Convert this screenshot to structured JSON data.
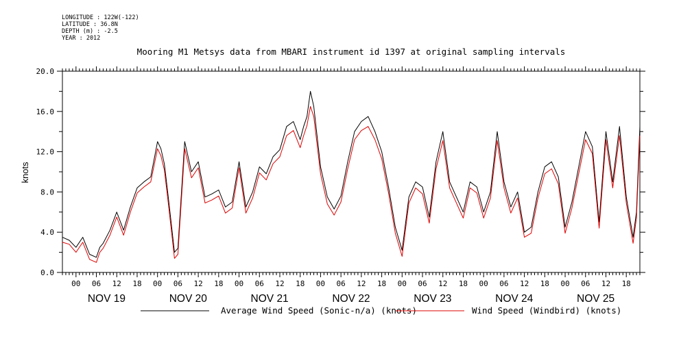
{
  "meta": {
    "longitude": "LONGITUDE : 122W(-122)",
    "latitude": "LATITUDE : 36.8N",
    "depth": "DEPTH (m) : -2.5",
    "year": "YEAR : 2012"
  },
  "chart_data": {
    "type": "line",
    "title": "Mooring M1 Metsys data from MBARI instrument id 1397 at original sampling intervals",
    "ylabel": "knots",
    "xlabel": "",
    "ylim": [
      0,
      20
    ],
    "yticks": [
      "0.0",
      "4.0",
      "8.0",
      "12.0",
      "16.0",
      "20.0"
    ],
    "x_unit": "hours since Nov 18 20:00",
    "xlim": [
      0,
      170
    ],
    "hour_ticks": [
      "00",
      "06",
      "12",
      "18"
    ],
    "day_labels": [
      "NOV 19",
      "NOV 20",
      "NOV 21",
      "NOV 22",
      "NOV 23",
      "NOV 24",
      "NOV 25"
    ],
    "colors": {
      "sonic": "#000000",
      "windbird": "#dd0000"
    },
    "series": [
      {
        "name": "Average Wind Speed (Sonic-n/a) (knots)",
        "x": [
          0,
          2,
          4,
          6,
          8,
          10,
          11,
          12,
          14,
          16,
          18,
          20,
          22,
          24,
          26,
          28,
          29,
          30,
          31,
          32,
          33,
          34,
          36,
          38,
          40,
          42,
          44,
          46,
          48,
          50,
          52,
          54,
          56,
          58,
          60,
          62,
          64,
          66,
          68,
          70,
          71,
          72,
          73,
          74,
          76,
          78,
          80,
          82,
          84,
          86,
          88,
          90,
          92,
          94,
          96,
          98,
          100,
          102,
          104,
          106,
          108,
          110,
          112,
          114,
          116,
          118,
          120,
          122,
          124,
          126,
          128,
          130,
          132,
          134,
          136,
          138,
          140,
          142,
          144,
          146,
          148,
          150,
          152,
          154,
          156,
          158,
          160,
          162,
          164,
          166,
          168,
          169,
          170
        ],
        "y": [
          3.5,
          3.2,
          2.5,
          3.5,
          1.8,
          1.5,
          2.5,
          2.9,
          4.2,
          6.0,
          4.2,
          6.5,
          8.4,
          9.0,
          9.5,
          13.0,
          12.3,
          10.8,
          8.0,
          5.0,
          2.0,
          2.4,
          13.0,
          10.0,
          11.0,
          7.5,
          7.8,
          8.2,
          6.5,
          7.0,
          11.0,
          6.5,
          8.0,
          10.5,
          9.8,
          11.5,
          12.2,
          14.5,
          15.0,
          13.2,
          14.5,
          15.5,
          18.0,
          16.5,
          10.5,
          7.5,
          6.3,
          7.6,
          11.0,
          14.0,
          15.0,
          15.5,
          14.0,
          12.0,
          8.5,
          4.5,
          2.2,
          7.5,
          9.0,
          8.5,
          5.5,
          11.0,
          14.0,
          9.0,
          7.5,
          6.0,
          9.0,
          8.5,
          6.0,
          8.0,
          14.0,
          9.0,
          6.5,
          8.0,
          4.0,
          4.5,
          8.0,
          10.5,
          11.0,
          9.5,
          4.5,
          7.0,
          10.5,
          14.0,
          12.5,
          5.0,
          14.0,
          9.0,
          14.5,
          7.5,
          3.5,
          6.0,
          14.5
        ]
      },
      {
        "name": "Wind Speed (Windbird) (knots)",
        "x": [
          0,
          2,
          4,
          6,
          8,
          10,
          11,
          12,
          14,
          16,
          18,
          20,
          22,
          24,
          26,
          28,
          29,
          30,
          31,
          32,
          33,
          34,
          36,
          38,
          40,
          42,
          44,
          46,
          48,
          50,
          52,
          54,
          56,
          58,
          60,
          62,
          64,
          66,
          68,
          70,
          71,
          72,
          73,
          74,
          76,
          78,
          80,
          82,
          84,
          86,
          88,
          90,
          92,
          94,
          96,
          98,
          100,
          102,
          104,
          106,
          108,
          110,
          112,
          114,
          116,
          118,
          120,
          122,
          124,
          126,
          128,
          130,
          132,
          134,
          136,
          138,
          140,
          142,
          144,
          146,
          148,
          150,
          152,
          154,
          156,
          158,
          160,
          162,
          164,
          166,
          168,
          169,
          170
        ],
        "y": [
          3.0,
          2.8,
          2.0,
          3.0,
          1.3,
          1.0,
          2.0,
          2.4,
          3.7,
          5.5,
          3.7,
          6.0,
          7.9,
          8.5,
          9.0,
          12.3,
          11.6,
          10.2,
          7.4,
          4.4,
          1.4,
          1.8,
          12.3,
          9.4,
          10.4,
          6.9,
          7.2,
          7.6,
          5.9,
          6.4,
          10.4,
          5.9,
          7.4,
          9.9,
          9.2,
          10.8,
          11.5,
          13.6,
          14.1,
          12.4,
          13.6,
          14.6,
          16.5,
          15.5,
          9.8,
          6.8,
          5.7,
          7.0,
          10.3,
          13.2,
          14.1,
          14.5,
          13.2,
          11.3,
          7.9,
          3.9,
          1.6,
          6.9,
          8.4,
          7.8,
          4.9,
          10.3,
          13.1,
          8.4,
          6.9,
          5.4,
          8.4,
          7.9,
          5.4,
          7.4,
          13.1,
          8.4,
          5.9,
          7.4,
          3.5,
          3.9,
          7.4,
          9.8,
          10.3,
          8.8,
          3.9,
          6.4,
          9.8,
          13.2,
          11.8,
          4.4,
          13.2,
          8.4,
          13.6,
          6.9,
          2.9,
          5.4,
          13.6
        ]
      }
    ]
  }
}
